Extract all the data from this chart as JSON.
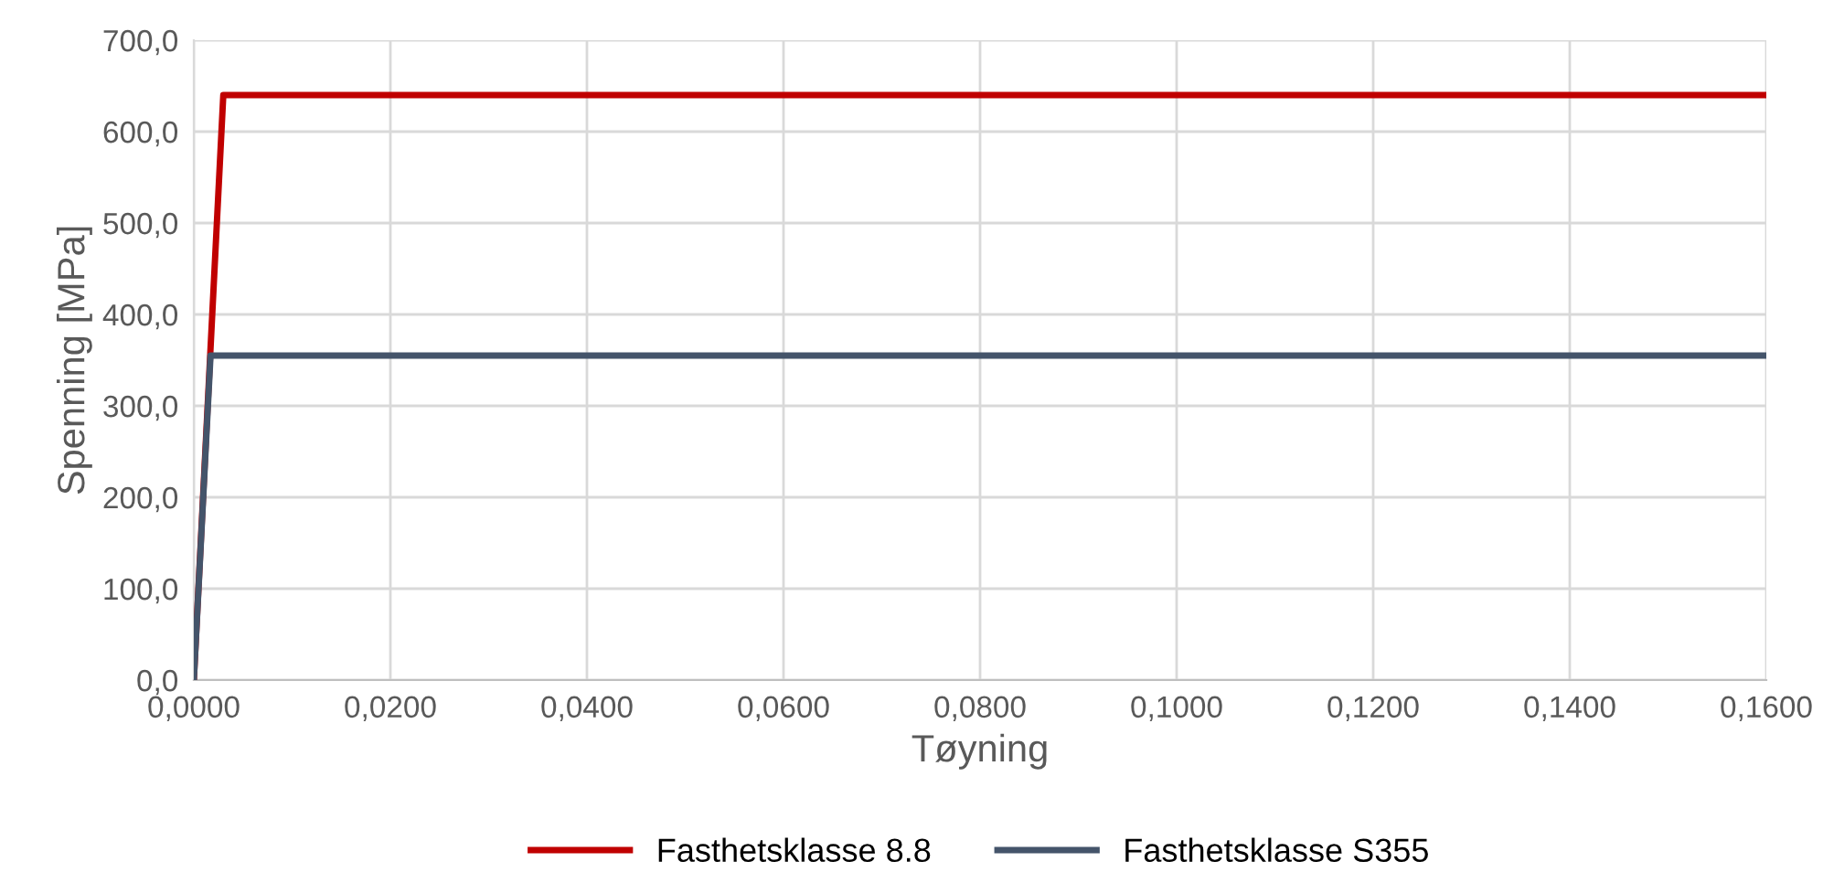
{
  "chart_data": {
    "type": "line",
    "xlabel": "Tøyning",
    "ylabel": "Spenning [MPa]",
    "grid": true,
    "legend": "bottom",
    "marker": "none",
    "line_style": "solid",
    "xlim": [
      0,
      0.16
    ],
    "ylim": [
      0,
      700
    ],
    "xticks": [
      {
        "value": 0,
        "label": "0,0000"
      },
      {
        "value": 0.02,
        "label": "0,0200"
      },
      {
        "value": 0.04,
        "label": "0,0400"
      },
      {
        "value": 0.06,
        "label": "0,0600"
      },
      {
        "value": 0.08,
        "label": "0,0800"
      },
      {
        "value": 0.1,
        "label": "0,1000"
      },
      {
        "value": 0.12,
        "label": "0,1200"
      },
      {
        "value": 0.14,
        "label": "0,1400"
      },
      {
        "value": 0.16,
        "label": "0,1600"
      }
    ],
    "yticks": [
      {
        "value": 0,
        "label": "0,0"
      },
      {
        "value": 100,
        "label": "100,0"
      },
      {
        "value": 200,
        "label": "200,0"
      },
      {
        "value": 300,
        "label": "300,0"
      },
      {
        "value": 400,
        "label": "400,0"
      },
      {
        "value": 500,
        "label": "500,0"
      },
      {
        "value": 600,
        "label": "600,0"
      },
      {
        "value": 700,
        "label": "700,0"
      }
    ],
    "series": [
      {
        "name": "Fasthetsklasse 8.8",
        "color": "#c00000",
        "x": [
          0,
          0.003,
          0.16
        ],
        "values": [
          0,
          640,
          640
        ]
      },
      {
        "name": "Fasthetsklasse S355",
        "color": "#44546a",
        "x": [
          0,
          0.0017,
          0.16
        ],
        "values": [
          0,
          355,
          355
        ]
      }
    ]
  }
}
